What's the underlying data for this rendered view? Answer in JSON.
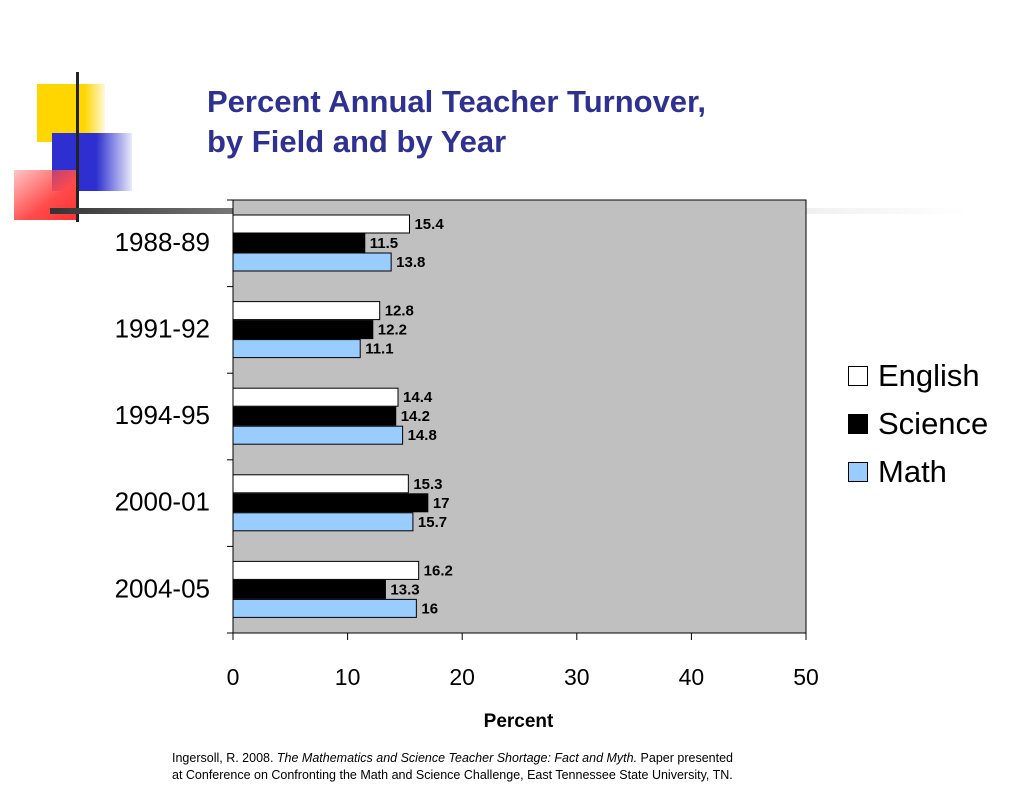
{
  "colors": {
    "title": "#2e3192",
    "plot_bg": "#c0c0c0",
    "english": "#ffffff",
    "science": "#000000",
    "math": "#99ccff",
    "deco_yellow": "#ffd600",
    "deco_blue": "#2d2fd0",
    "deco_red": "#ff4a4a"
  },
  "citation": {
    "line1_pre": "Ingersoll, R. 2008. ",
    "line1_italic": "The Mathematics and Science Teacher Shortage: Fact and Myth.",
    "line1_post": " Paper presented",
    "line2": "at Conference on Confronting the Math and Science Challenge, East Tennessee State University, TN."
  },
  "chart_data": {
    "type": "bar",
    "orientation": "horizontal",
    "title_lines": [
      "Percent Annual Teacher Turnover,",
      "by Field and by Year"
    ],
    "xlabel": "Percent",
    "ylabel": "",
    "xlim": [
      0,
      50
    ],
    "xticks": [
      0,
      10,
      20,
      30,
      40,
      50
    ],
    "categories": [
      "1988-89",
      "1991-92",
      "1994-95",
      "2000-01",
      "2004-05"
    ],
    "series": [
      {
        "name": "English",
        "color": "#ffffff",
        "values": [
          15.4,
          12.8,
          14.4,
          15.3,
          16.2
        ],
        "labels": [
          "15.4",
          "12.8",
          "14.4",
          "15.3",
          "16.2"
        ]
      },
      {
        "name": "Science",
        "color": "#000000",
        "values": [
          11.5,
          12.2,
          14.2,
          17,
          13.3
        ],
        "labels": [
          "11.5",
          "12.2",
          "14.2",
          "17",
          "13.3"
        ]
      },
      {
        "name": "Math",
        "color": "#99ccff",
        "values": [
          13.8,
          11.1,
          14.8,
          15.7,
          16
        ],
        "labels": [
          "13.8",
          "11.1",
          "14.8",
          "15.7",
          "16"
        ]
      }
    ],
    "grid": false,
    "legend_position": "right"
  }
}
